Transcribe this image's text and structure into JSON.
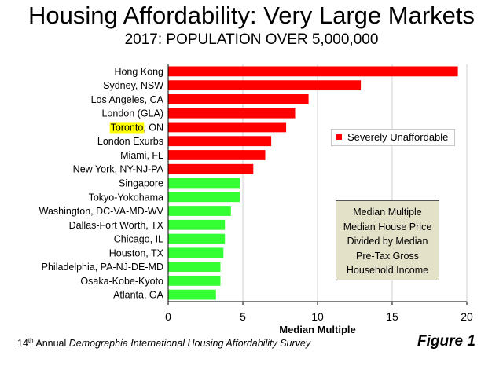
{
  "title": "Housing Affordability: Very Large Markets",
  "subtitle": "2017: POPULATION OVER 5,000,000",
  "chart_data": {
    "type": "bar",
    "orientation": "horizontal",
    "categories": [
      "Hong Kong",
      "Sydney, NSW",
      "Los Angeles, CA",
      "London (GLA)",
      "Toronto, ON",
      "London Exurbs",
      "Miami, FL",
      "New York, NY-NJ-PA",
      "Singapore",
      "Tokyo-Yokohama",
      "Washington, DC-VA-MD-WV",
      "Dallas-Fort Worth, TX",
      "Chicago, IL",
      "Houston, TX",
      "Philadelphia, PA-NJ-DE-MD",
      "Osaka-Kobe-Kyoto",
      "Atlanta, GA"
    ],
    "values": [
      19.4,
      12.9,
      9.4,
      8.5,
      7.9,
      6.9,
      6.5,
      5.7,
      4.8,
      4.8,
      4.2,
      3.8,
      3.8,
      3.7,
      3.5,
      3.5,
      3.2
    ],
    "highlighted_category": "Toronto",
    "highlight_color": "#ffff00",
    "series": [
      {
        "name": "Severely Unaffordable",
        "color": "#ff0000",
        "range": [
          0,
          7
        ]
      },
      {
        "name": "",
        "color": "#33ff33",
        "range": [
          8,
          16
        ]
      }
    ],
    "xlabel": "Median Multiple",
    "ylabel": "",
    "xlim": [
      0,
      20
    ],
    "xticks": [
      0,
      5,
      10,
      15,
      20
    ],
    "grid": "vertical",
    "legend_position": "center-right"
  },
  "note": {
    "lines": [
      "Median Multiple",
      "Median House Price",
      "Divided by Median",
      "Pre-Tax Gross",
      "Household Income"
    ]
  },
  "footer": {
    "ordinal": "14",
    "ordinal_suffix": "th",
    "text_plain": " Annual ",
    "text_italic": "Demographia International Housing Affordability Survey"
  },
  "figure_label": "Figure 1",
  "colors": {
    "gridline": "#d0d0d0",
    "axis": "#000000"
  }
}
